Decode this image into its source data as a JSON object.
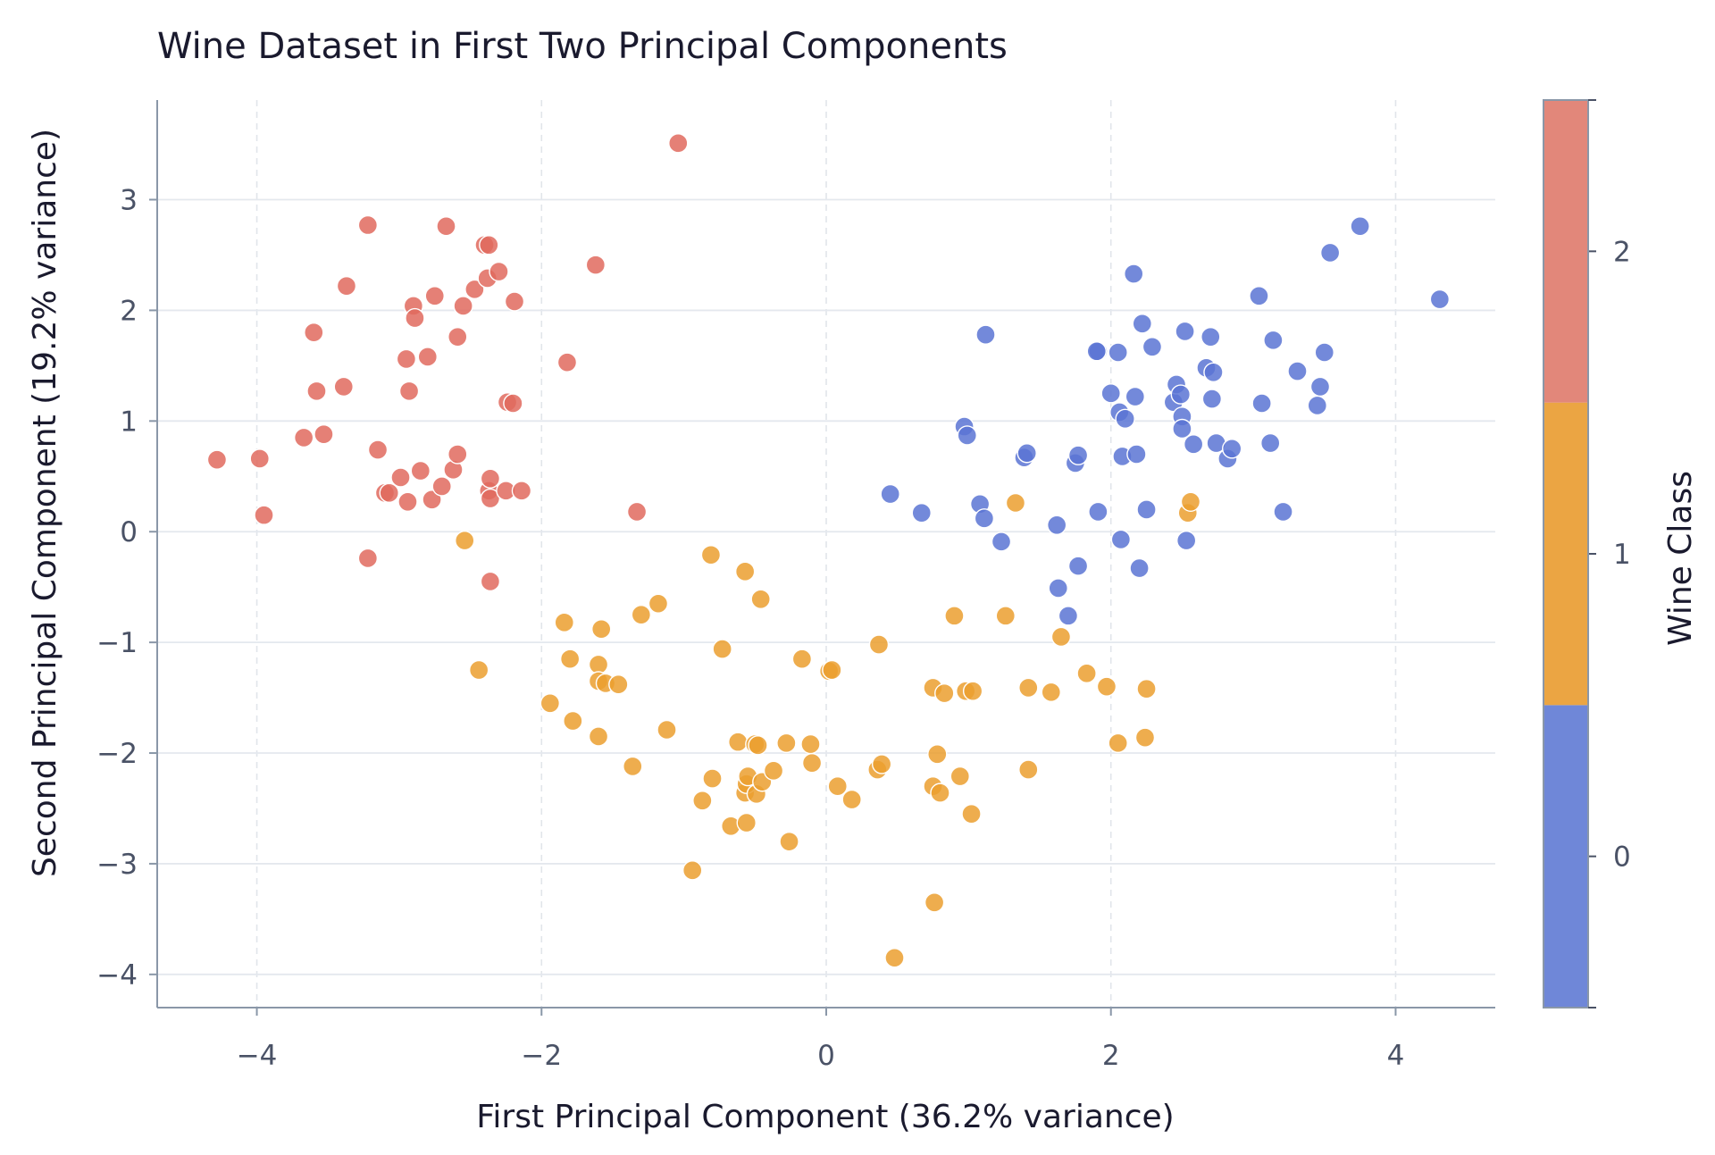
{
  "chart_data": {
    "type": "scatter",
    "title": "Wine Dataset in First Two Principal Components",
    "xlabel": "First Principal Component (36.2% variance)",
    "ylabel": "Second Principal Component (19.2% variance)",
    "xlim": [
      -4.7,
      4.7
    ],
    "ylim": [
      -4.3,
      3.9
    ],
    "xticks": [
      -4,
      -2,
      0,
      2,
      4
    ],
    "xtick_labels": [
      "−4",
      "−2",
      "0",
      "2",
      "4"
    ],
    "yticks": [
      -4,
      -3,
      -2,
      -1,
      0,
      1,
      2,
      3
    ],
    "ytick_labels": [
      "−4",
      "−3",
      "−2",
      "−1",
      "0",
      "1",
      "2",
      "3"
    ],
    "grid": true,
    "colorbar": {
      "label": "Wine Class",
      "ticks": [
        "0",
        "1",
        "2"
      ],
      "colors": [
        "#6f87d8",
        "#eba543",
        "#e2877a"
      ]
    },
    "series": [
      {
        "class": "0",
        "color": "#5b74d4",
        "points": [
          [
            0.45,
            0.34
          ],
          [
            0.67,
            0.17
          ],
          [
            0.97,
            0.95
          ],
          [
            0.99,
            0.87
          ],
          [
            1.08,
            0.25
          ],
          [
            1.12,
            1.78
          ],
          [
            1.11,
            0.12
          ],
          [
            1.23,
            -0.09
          ],
          [
            1.39,
            0.67
          ],
          [
            1.41,
            0.71
          ],
          [
            1.62,
            0.06
          ],
          [
            1.63,
            -0.51
          ],
          [
            1.7,
            -0.76
          ],
          [
            1.75,
            0.62
          ],
          [
            1.77,
            0.69
          ],
          [
            1.77,
            -0.31
          ],
          [
            1.91,
            1.63
          ],
          [
            1.9,
            1.63
          ],
          [
            1.91,
            0.18
          ],
          [
            2.0,
            1.25
          ],
          [
            2.05,
            1.62
          ],
          [
            2.06,
            1.08
          ],
          [
            2.08,
            0.68
          ],
          [
            2.1,
            1.02
          ],
          [
            2.07,
            -0.07
          ],
          [
            2.16,
            2.33
          ],
          [
            2.17,
            1.22
          ],
          [
            2.18,
            0.7
          ],
          [
            2.2,
            -0.33
          ],
          [
            2.22,
            1.88
          ],
          [
            2.25,
            0.2
          ],
          [
            2.29,
            1.67
          ],
          [
            2.44,
            1.17
          ],
          [
            2.46,
            1.33
          ],
          [
            2.49,
            1.24
          ],
          [
            2.5,
            1.04
          ],
          [
            2.5,
            0.93
          ],
          [
            2.52,
            1.81
          ],
          [
            2.53,
            -0.08
          ],
          [
            2.58,
            0.79
          ],
          [
            2.67,
            1.48
          ],
          [
            2.7,
            1.76
          ],
          [
            2.71,
            1.2
          ],
          [
            2.72,
            1.44
          ],
          [
            2.74,
            0.8
          ],
          [
            2.82,
            0.66
          ],
          [
            2.85,
            0.75
          ],
          [
            3.04,
            2.13
          ],
          [
            3.06,
            1.16
          ],
          [
            3.12,
            0.8
          ],
          [
            3.14,
            1.73
          ],
          [
            3.21,
            0.18
          ],
          [
            3.31,
            1.45
          ],
          [
            3.45,
            1.14
          ],
          [
            3.47,
            1.31
          ],
          [
            3.5,
            1.62
          ],
          [
            3.54,
            2.52
          ],
          [
            3.75,
            2.76
          ],
          [
            4.31,
            2.1
          ]
        ]
      },
      {
        "class": "1",
        "color": "#eb9f2f",
        "points": [
          [
            -2.54,
            -0.08
          ],
          [
            -2.44,
            -1.25
          ],
          [
            -1.94,
            -1.55
          ],
          [
            -1.84,
            -0.82
          ],
          [
            -1.8,
            -1.15
          ],
          [
            -1.78,
            -1.71
          ],
          [
            -1.6,
            -1.85
          ],
          [
            -1.6,
            -1.2
          ],
          [
            -1.58,
            -0.88
          ],
          [
            -1.6,
            -1.35
          ],
          [
            -1.55,
            -1.37
          ],
          [
            -1.46,
            -1.38
          ],
          [
            -1.36,
            -2.12
          ],
          [
            -1.3,
            -0.75
          ],
          [
            -1.18,
            -0.65
          ],
          [
            -1.12,
            -1.79
          ],
          [
            -0.94,
            -3.06
          ],
          [
            -0.87,
            -2.43
          ],
          [
            -0.81,
            -0.21
          ],
          [
            -0.8,
            -2.23
          ],
          [
            -0.73,
            -1.06
          ],
          [
            -0.67,
            -2.66
          ],
          [
            -0.62,
            -1.9
          ],
          [
            -0.57,
            -0.36
          ],
          [
            -0.56,
            -2.63
          ],
          [
            -0.57,
            -2.36
          ],
          [
            -0.56,
            -2.28
          ],
          [
            -0.55,
            -2.21
          ],
          [
            -0.5,
            -1.92
          ],
          [
            -0.49,
            -2.37
          ],
          [
            -0.48,
            -1.93
          ],
          [
            -0.46,
            -0.61
          ],
          [
            -0.45,
            -2.26
          ],
          [
            -0.37,
            -2.16
          ],
          [
            -0.28,
            -1.91
          ],
          [
            -0.26,
            -2.8
          ],
          [
            -0.17,
            -1.15
          ],
          [
            -0.11,
            -1.92
          ],
          [
            -0.1,
            -2.09
          ],
          [
            0.02,
            -1.26
          ],
          [
            0.04,
            -1.25
          ],
          [
            0.08,
            -2.3
          ],
          [
            0.18,
            -2.42
          ],
          [
            0.36,
            -2.15
          ],
          [
            0.37,
            -1.02
          ],
          [
            0.39,
            -2.1
          ],
          [
            0.48,
            -3.85
          ],
          [
            0.75,
            -1.41
          ],
          [
            0.75,
            -2.3
          ],
          [
            0.76,
            -3.35
          ],
          [
            0.78,
            -2.01
          ],
          [
            0.8,
            -2.36
          ],
          [
            0.83,
            -1.46
          ],
          [
            0.9,
            -0.76
          ],
          [
            0.94,
            -2.21
          ],
          [
            0.98,
            -1.44
          ],
          [
            1.02,
            -2.55
          ],
          [
            1.03,
            -1.44
          ],
          [
            1.26,
            -0.76
          ],
          [
            1.33,
            0.26
          ],
          [
            1.42,
            -2.15
          ],
          [
            1.42,
            -1.41
          ],
          [
            1.58,
            -1.45
          ],
          [
            1.65,
            -0.95
          ],
          [
            1.83,
            -1.28
          ],
          [
            1.97,
            -1.4
          ],
          [
            2.05,
            -1.91
          ],
          [
            2.24,
            -1.86
          ],
          [
            2.25,
            -1.42
          ],
          [
            2.54,
            0.17
          ],
          [
            2.56,
            0.27
          ]
        ]
      },
      {
        "class": "2",
        "color": "#e06a5e",
        "points": [
          [
            -4.28,
            0.65
          ],
          [
            -3.98,
            0.66
          ],
          [
            -3.95,
            0.15
          ],
          [
            -3.67,
            0.85
          ],
          [
            -3.6,
            1.8
          ],
          [
            -3.58,
            1.27
          ],
          [
            -3.53,
            0.88
          ],
          [
            -3.37,
            2.22
          ],
          [
            -3.39,
            1.31
          ],
          [
            -3.22,
            2.77
          ],
          [
            -3.22,
            -0.24
          ],
          [
            -3.15,
            0.74
          ],
          [
            -3.1,
            0.35
          ],
          [
            -3.07,
            0.35
          ],
          [
            -2.99,
            0.49
          ],
          [
            -2.95,
            1.56
          ],
          [
            -2.94,
            0.27
          ],
          [
            -2.93,
            1.27
          ],
          [
            -2.9,
            2.04
          ],
          [
            -2.89,
            1.93
          ],
          [
            -2.85,
            0.55
          ],
          [
            -2.8,
            1.58
          ],
          [
            -2.77,
            0.29
          ],
          [
            -2.75,
            2.13
          ],
          [
            -2.7,
            0.41
          ],
          [
            -2.67,
            2.76
          ],
          [
            -2.62,
            0.56
          ],
          [
            -2.59,
            1.76
          ],
          [
            -2.59,
            0.7
          ],
          [
            -2.55,
            2.04
          ],
          [
            -2.47,
            2.19
          ],
          [
            -2.4,
            2.59
          ],
          [
            -2.37,
            2.59
          ],
          [
            -2.38,
            2.29
          ],
          [
            -2.37,
            0.37
          ],
          [
            -2.36,
            0.3
          ],
          [
            -2.36,
            0.48
          ],
          [
            -2.36,
            -0.45
          ],
          [
            -2.3,
            2.35
          ],
          [
            -2.25,
            0.37
          ],
          [
            -2.24,
            1.17
          ],
          [
            -2.2,
            1.16
          ],
          [
            -2.19,
            2.08
          ],
          [
            -2.14,
            0.37
          ],
          [
            -1.82,
            1.53
          ],
          [
            -1.62,
            2.41
          ],
          [
            -1.33,
            0.18
          ],
          [
            -1.04,
            3.51
          ]
        ]
      }
    ]
  }
}
